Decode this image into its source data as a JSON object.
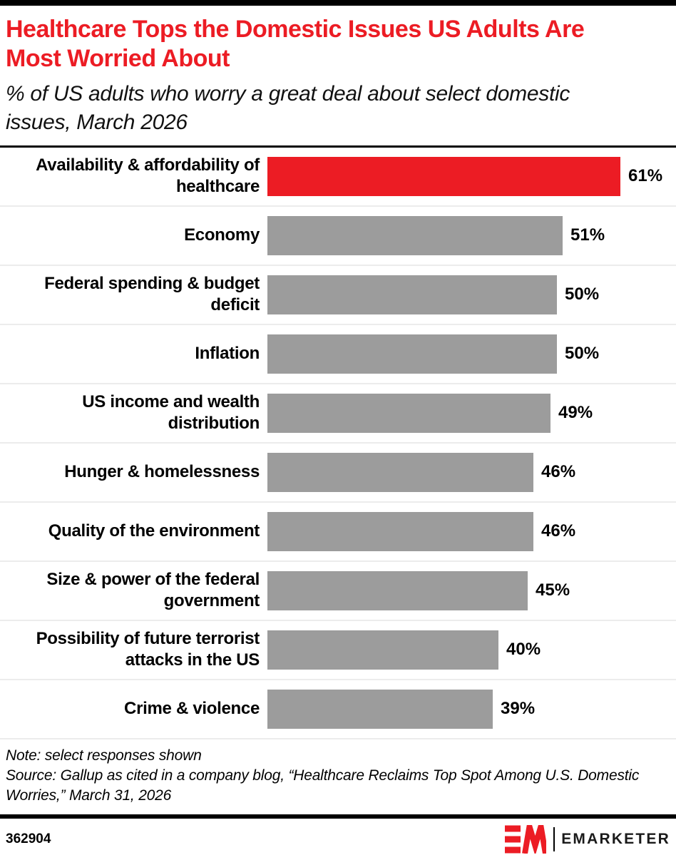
{
  "colors": {
    "accent_red": "#ec1c24",
    "bar_gray": "#9c9c9c",
    "row_divider": "#ececec",
    "rule_black": "#000000"
  },
  "header": {
    "title": "Healthcare Tops the Domestic Issues US Adults Are Most Worried About",
    "subtitle": "% of US adults who worry a great deal about select domestic issues, March 2026"
  },
  "chart_data": {
    "type": "bar",
    "orientation": "horizontal",
    "title": "Healthcare Tops the Domestic Issues US Adults Are Most Worried About",
    "subtitle": "% of US adults who worry a great deal about select domestic issues, March 2026",
    "categories": [
      "Availability & affordability of healthcare",
      "Economy",
      "Federal spending & budget deficit",
      "Inflation",
      "US income and wealth distribution",
      "Hunger & homelessness",
      "Quality of the environment",
      "Size & power of the federal government",
      "Possibility of future terrorist attacks in the US",
      "Crime & violence"
    ],
    "values": [
      61,
      51,
      50,
      50,
      49,
      46,
      46,
      45,
      40,
      39
    ],
    "value_suffix": "%",
    "value_labels_shown": true,
    "highlight_index": 0,
    "highlight_color": "#ec1c24",
    "bar_color": "#9c9c9c",
    "xlim": [
      0,
      65
    ],
    "grid": false,
    "legend": "none",
    "sorted": "descending"
  },
  "footnotes": {
    "note": "Note: select responses shown",
    "source": "Source: Gallup as cited in a company blog, “Healthcare Reclaims Top Spot Among U.S. Domestic Worries,” March 31, 2026"
  },
  "footer": {
    "chart_id": "362904",
    "brand": "EMARKETER",
    "logo_icon": "em-monogram-icon"
  }
}
